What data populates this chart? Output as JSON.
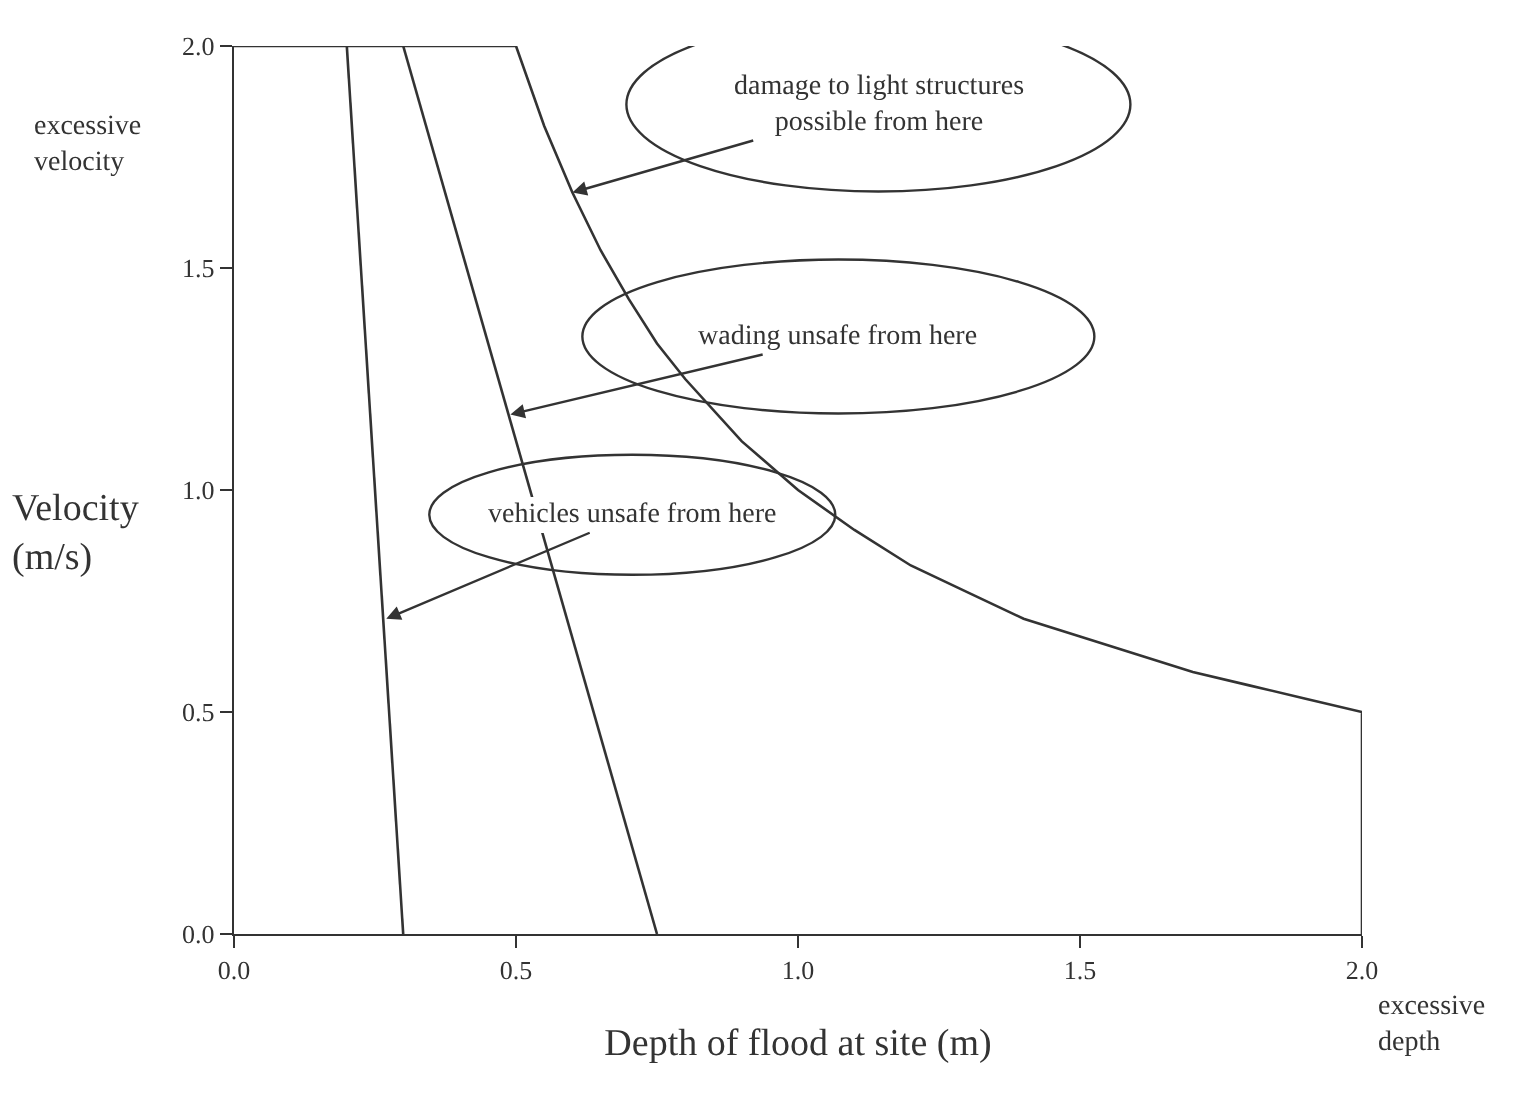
{
  "chart_data": {
    "type": "line",
    "xlabel": "Depth of flood at site (m)",
    "ylabel": "Velocity\n(m/s)",
    "xlim": [
      0,
      2
    ],
    "ylim": [
      0,
      2
    ],
    "xticks": [
      {
        "value": 0,
        "label": "0.0"
      },
      {
        "value": 0.5,
        "label": "0.5"
      },
      {
        "value": 1,
        "label": "1.0"
      },
      {
        "value": 1.5,
        "label": "1.5"
      },
      {
        "value": 2,
        "label": "2.0"
      }
    ],
    "yticks": [
      {
        "value": 0,
        "label": "0.0"
      },
      {
        "value": 0.5,
        "label": "0.5"
      },
      {
        "value": 1,
        "label": "1.0"
      },
      {
        "value": 1.5,
        "label": "1.5"
      },
      {
        "value": 2,
        "label": "2.0"
      }
    ],
    "series": [
      {
        "color": "#333333",
        "x": [
          0.2,
          0.3
        ],
        "values": [
          2.0,
          0.0
        ]
      },
      {
        "color": "#333333",
        "x": [
          0.3,
          0.75
        ],
        "values": [
          2.0,
          0.0
        ]
      },
      {
        "color": "#333333",
        "x": [
          0,
          0.5,
          0.55,
          0.6,
          0.65,
          0.7,
          0.75,
          0.8,
          0.9,
          1.0,
          1.1,
          1.2,
          1.3,
          1.4,
          1.5,
          1.6,
          1.7,
          1.8,
          1.9,
          2.0,
          2.0
        ],
        "values": [
          2.0,
          2.0,
          1.82,
          1.67,
          1.54,
          1.43,
          1.33,
          1.25,
          1.11,
          1.0,
          0.91,
          0.83,
          0.77,
          0.71,
          0.67,
          0.63,
          0.59,
          0.56,
          0.53,
          0.5,
          0.0
        ]
      }
    ],
    "marker": "none",
    "line_style": "solid",
    "annotations": [
      {
        "text": "damage to light structures\npossible from here",
        "x": 0.6,
        "y": 1.67
      },
      {
        "text": "wading unsafe from here",
        "x": 0.49,
        "y": 1.17
      },
      {
        "text": "vehicles unsafe from here",
        "x": 0.27,
        "y": 0.71
      },
      "excessive\nvelocity",
      "excessive\ndepth"
    ]
  }
}
